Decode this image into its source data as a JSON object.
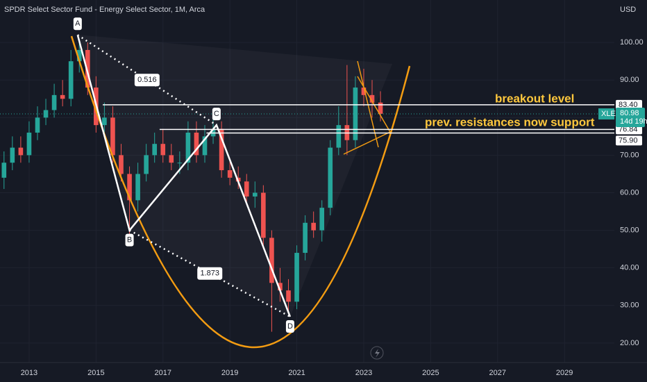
{
  "chart_data": {
    "type": "candlestick",
    "title": "SPDR Select Sector Fund - Energy Select Sector, 1M, Arca",
    "currency": "USD",
    "symbol": "XLE",
    "countdown": "14d 19h",
    "x": [
      2012.25,
      2012.5,
      2012.75,
      2013,
      2013.25,
      2013.5,
      2013.75,
      2014,
      2014.25,
      2014.5,
      2014.75,
      2015,
      2015.25,
      2015.5,
      2015.75,
      2016,
      2016.25,
      2016.5,
      2016.75,
      2017,
      2017.25,
      2017.5,
      2017.75,
      2018,
      2018.25,
      2018.5,
      2018.75,
      2019,
      2019.25,
      2019.5,
      2019.75,
      2020,
      2020.25,
      2020.5,
      2020.75,
      2021,
      2021.25,
      2021.5,
      2021.75,
      2022,
      2022.25,
      2022.5,
      2022.75,
      2023,
      2023.25,
      2023.5
    ],
    "open": [
      64,
      68,
      72,
      70,
      76,
      80,
      82,
      86,
      85,
      95,
      98,
      88,
      78,
      80,
      70,
      65,
      58,
      65,
      70,
      73,
      70,
      68,
      68,
      76,
      70,
      75,
      77,
      66,
      64,
      63,
      59,
      60,
      48,
      36,
      34,
      31,
      44,
      52,
      50,
      56,
      72,
      78,
      74,
      88,
      86,
      84
    ],
    "high": [
      71,
      75,
      75,
      79,
      83,
      85,
      89,
      90,
      98,
      101,
      100,
      91,
      84,
      83,
      73,
      67,
      68,
      73,
      76,
      77,
      73,
      71,
      79,
      79,
      78,
      80,
      79,
      69,
      67,
      65,
      63,
      62,
      50,
      40,
      37,
      46,
      54,
      55,
      58,
      74,
      83,
      94,
      91,
      93,
      90,
      87
    ],
    "low": [
      61,
      66,
      68,
      68,
      74,
      78,
      80,
      83,
      83,
      92,
      86,
      76,
      75,
      68,
      63,
      49,
      55,
      63,
      68,
      68,
      66,
      65,
      66,
      68,
      68,
      73,
      64,
      62,
      61,
      57,
      56,
      45,
      23,
      31,
      28,
      29,
      42,
      48,
      47,
      54,
      70,
      70,
      72,
      83,
      80,
      79
    ],
    "close": [
      68,
      72,
      70,
      76,
      80,
      82,
      86,
      85,
      95,
      98,
      88,
      78,
      80,
      70,
      65,
      58,
      65,
      70,
      73,
      70,
      68,
      68,
      76,
      70,
      75,
      77,
      66,
      64,
      63,
      59,
      60,
      48,
      36,
      34,
      31,
      44,
      52,
      50,
      56,
      72,
      78,
      74,
      88,
      86,
      84,
      81
    ],
    "up_color": "#26a69a",
    "down_color": "#ef5350",
    "last_price": {
      "value": 80.98,
      "label": "80.98"
    },
    "xlim": [
      2012.13,
      2030.49
    ],
    "ylim": [
      14.8,
      111.3
    ],
    "xticks": [
      2013,
      2015,
      2017,
      2019,
      2021,
      2023,
      2025,
      2027,
      2029
    ],
    "yticks": [
      {
        "value": 20,
        "label": "20.00"
      },
      {
        "value": 30,
        "label": "30.00"
      },
      {
        "value": 40,
        "label": "40.00"
      },
      {
        "value": 50,
        "label": "50.00"
      },
      {
        "value": 60,
        "label": "60.00"
      },
      {
        "value": 70,
        "label": "70.00"
      },
      {
        "value": 80,
        "label": "80.00"
      },
      {
        "value": 90,
        "label": "90.00"
      },
      {
        "value": 100,
        "label": "100.00"
      }
    ],
    "grid": true,
    "price_lines": [
      {
        "value": 83.4,
        "label": "83.40",
        "x": 2015.2
      },
      {
        "value": 76.84,
        "label": "76.84",
        "x": 2016.9
      },
      {
        "value": 75.9,
        "label": "75.90",
        "x": 2018.3
      }
    ],
    "points": [
      {
        "label": "A",
        "x": 2014.45,
        "y": 102
      },
      {
        "label": "B",
        "x": 2016,
        "y": 50
      },
      {
        "label": "C",
        "x": 2018.6,
        "y": 78
      },
      {
        "label": "D",
        "x": 2020.8,
        "y": 27
      }
    ],
    "ratios": [
      "0.516",
      "1.873"
    ],
    "annotations": [
      "breakout level",
      "prev. resistances now support"
    ]
  }
}
